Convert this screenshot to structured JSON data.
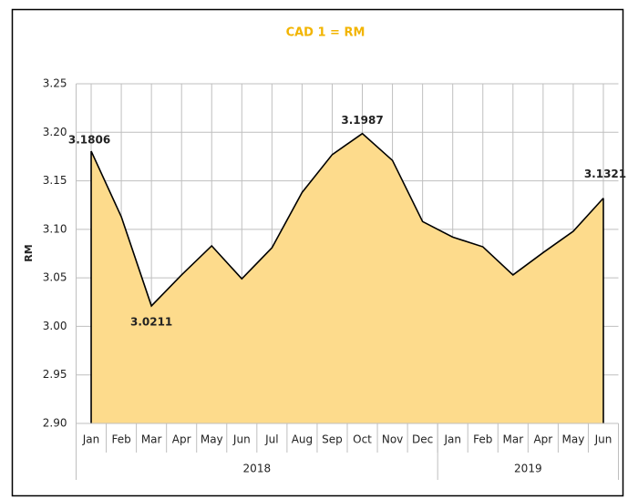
{
  "chart_data": {
    "type": "area",
    "title": "CAD 1 = RM",
    "y_label": "RM",
    "groups": [
      {
        "label": "2018",
        "categories": [
          "Jan",
          "Feb",
          "Mar",
          "Apr",
          "May",
          "Jun",
          "Jul",
          "Aug",
          "Sep",
          "Oct",
          "Nov",
          "Dec"
        ]
      },
      {
        "label": "2019",
        "categories": [
          "Jan",
          "Feb",
          "Mar",
          "Apr",
          "May",
          "Jun"
        ]
      }
    ],
    "values": [
      3.1806,
      3.113,
      3.0211,
      3.053,
      3.083,
      3.049,
      3.081,
      3.138,
      3.177,
      3.1987,
      3.171,
      3.108,
      3.092,
      3.082,
      3.053,
      3.076,
      3.098,
      3.1321
    ],
    "value_labels": [
      "3.1806",
      null,
      "3.0211",
      null,
      null,
      null,
      null,
      null,
      null,
      "3.1987",
      null,
      null,
      null,
      null,
      null,
      null,
      null,
      "3.1321"
    ],
    "color": "#fddb8c",
    "line_color": "#000000",
    "title_color": "#f2b400",
    "ylim": [
      2.9,
      3.25
    ],
    "yticks": [
      {
        "value": 2.9,
        "label": "2.90"
      },
      2.95,
      {
        "value": 3.0,
        "label": "3.00"
      },
      3.05,
      {
        "value": 3.1,
        "label": "3.10"
      },
      3.15,
      {
        "value": 3.2,
        "label": "3.20"
      },
      3.25
    ],
    "grid": true
  }
}
